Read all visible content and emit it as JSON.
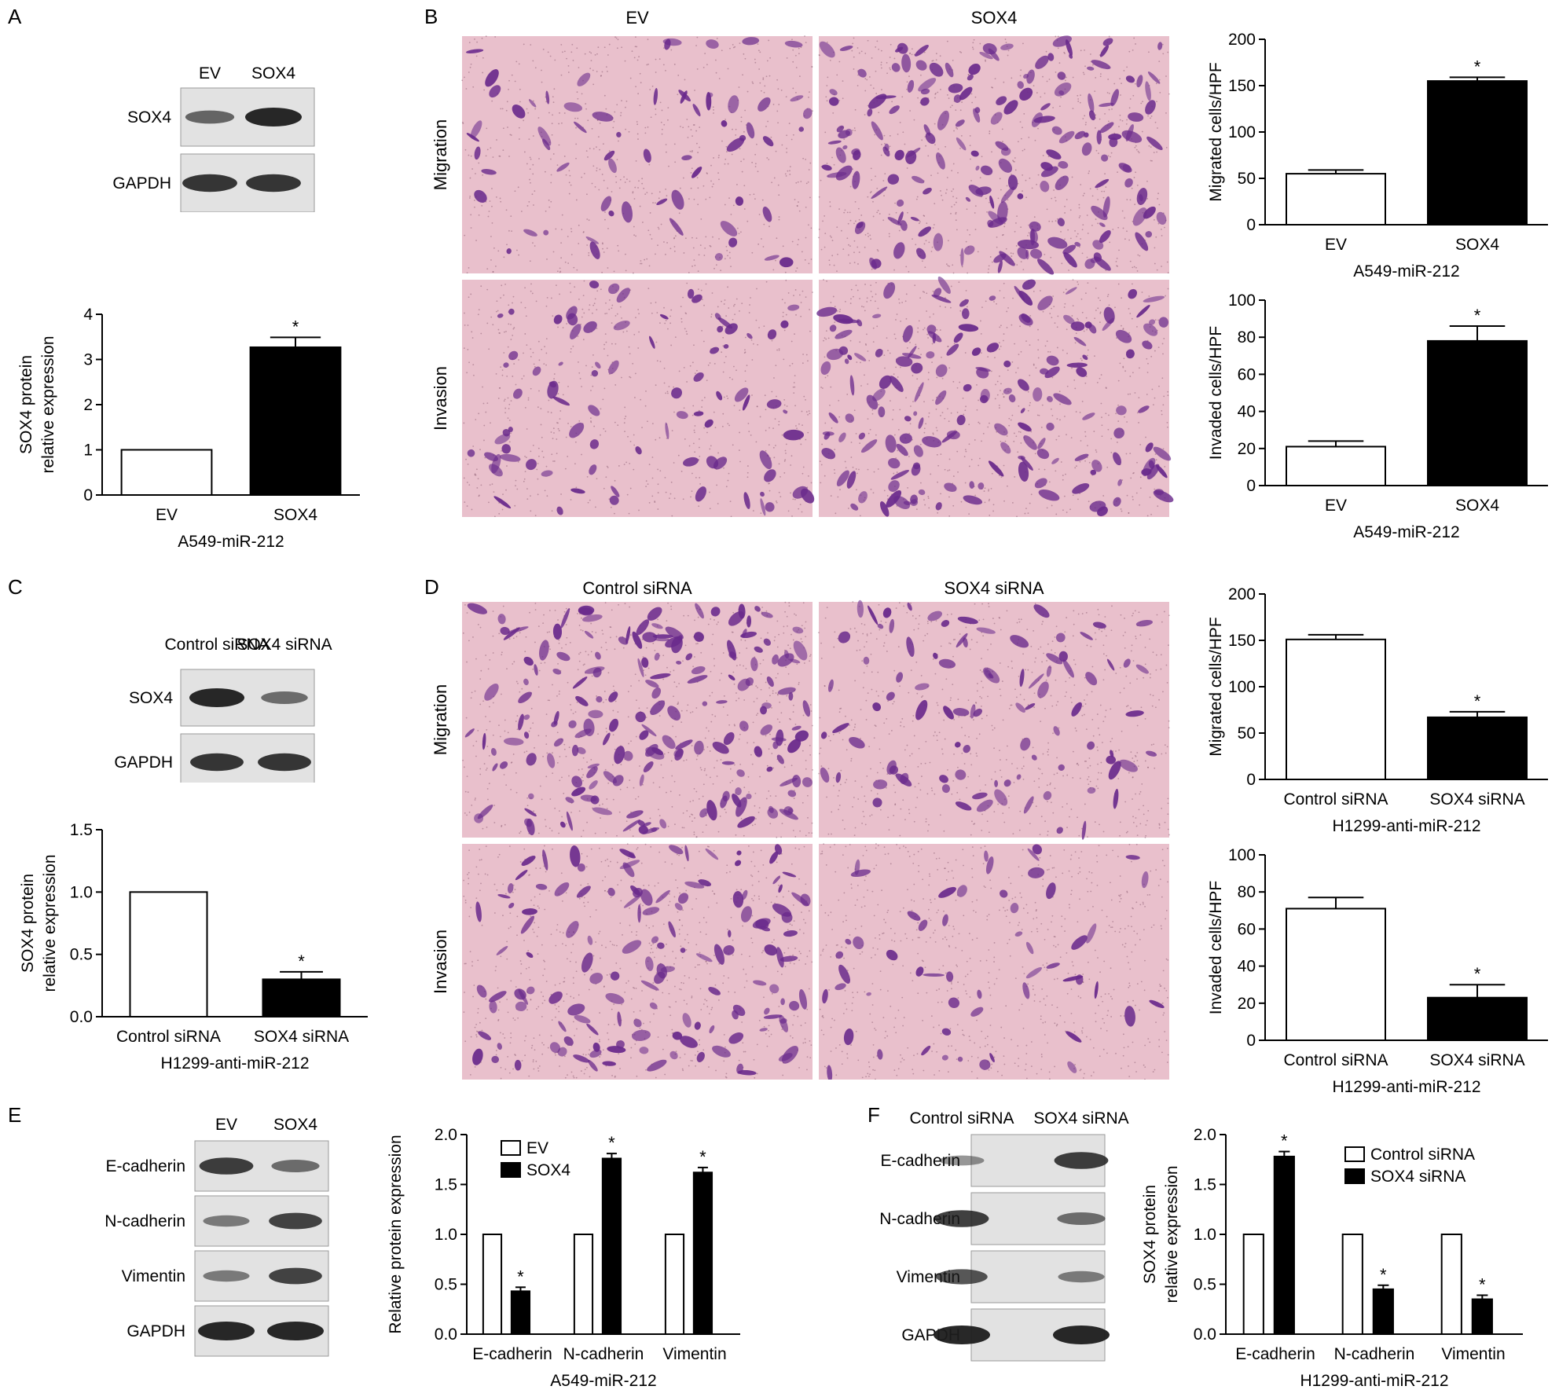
{
  "colors": {
    "ink": "#000000",
    "paper": "#ffffff",
    "blot_bg": "#e2e2e2",
    "band": "#1c1c1c",
    "stain_bg": "#e9c0cc",
    "cell": "#6a2a8c"
  },
  "panel_a": {
    "letter": "A",
    "blot": {
      "columns": [
        "EV",
        "SOX4"
      ],
      "rows": [
        "SOX4",
        "GAPDH"
      ],
      "band_intensity": [
        [
          0.55,
          1.0
        ],
        [
          0.9,
          0.9
        ]
      ]
    },
    "chart_data": {
      "type": "bar",
      "categories": [
        "EV",
        "SOX4"
      ],
      "values": [
        1.0,
        3.27
      ],
      "errors": [
        0,
        0.22
      ],
      "significance": [
        "",
        "*"
      ],
      "ylabel": "SOX4 protein\nrelative expression",
      "xlabel": "A549-miR-212",
      "ylim": [
        0,
        4
      ],
      "yticks": [
        "0",
        "1",
        "2",
        "3",
        "4"
      ]
    }
  },
  "panel_b": {
    "letter": "B",
    "columns": [
      "EV",
      "SOX4"
    ],
    "rows": [
      "Migration",
      "Invasion"
    ],
    "cell_density": [
      [
        0.35,
        1.0
      ],
      [
        0.45,
        0.9
      ]
    ],
    "chart_data": [
      {
        "type": "bar",
        "categories": [
          "EV",
          "SOX4"
        ],
        "values": [
          55,
          155
        ],
        "errors": [
          4,
          4
        ],
        "significance": [
          "",
          "*"
        ],
        "ylabel": "Migrated cells/HPF",
        "xlabel": "A549-miR-212",
        "ylim": [
          0,
          200
        ],
        "yticks": [
          "0",
          "50",
          "100",
          "150",
          "200"
        ]
      },
      {
        "type": "bar",
        "categories": [
          "EV",
          "SOX4"
        ],
        "values": [
          21,
          78
        ],
        "errors": [
          3,
          8
        ],
        "significance": [
          "",
          "*"
        ],
        "ylabel": "Invaded cells/HPF",
        "xlabel": "A549-miR-212",
        "ylim": [
          0,
          100
        ],
        "yticks": [
          "0",
          "20",
          "40",
          "60",
          "80",
          "100"
        ]
      }
    ]
  },
  "panel_c": {
    "letter": "C",
    "blot": {
      "columns": [
        "Control siRNA",
        "SOX4 siRNA"
      ],
      "rows": [
        "SOX4",
        "GAPDH"
      ],
      "band_intensity": [
        [
          1.0,
          0.5
        ],
        [
          0.9,
          0.9
        ]
      ]
    },
    "chart_data": {
      "type": "bar",
      "categories": [
        "Control siRNA",
        "SOX4 siRNA"
      ],
      "values": [
        1.0,
        0.3
      ],
      "errors": [
        0,
        0.06
      ],
      "significance": [
        "",
        "*"
      ],
      "ylabel": "SOX4 protein\nrelative expression",
      "xlabel": "H1299-anti-miR-212",
      "ylim": [
        0,
        1.5
      ],
      "yticks": [
        "0.0",
        "0.5",
        "1.0",
        "1.5"
      ]
    }
  },
  "panel_d": {
    "letter": "D",
    "columns": [
      "Control siRNA",
      "SOX4 siRNA"
    ],
    "rows": [
      "Migration",
      "Invasion"
    ],
    "cell_density": [
      [
        1.0,
        0.5
      ],
      [
        0.75,
        0.3
      ]
    ],
    "chart_data": [
      {
        "type": "bar",
        "categories": [
          "Control siRNA",
          "SOX4 siRNA"
        ],
        "values": [
          151,
          67
        ],
        "errors": [
          5,
          6
        ],
        "significance": [
          "",
          "*"
        ],
        "ylabel": "Migrated cells/HPF",
        "xlabel": "H1299-anti-miR-212",
        "ylim": [
          0,
          200
        ],
        "yticks": [
          "0",
          "50",
          "100",
          "150",
          "200"
        ]
      },
      {
        "type": "bar",
        "categories": [
          "Control siRNA",
          "SOX4 siRNA"
        ],
        "values": [
          71,
          23
        ],
        "errors": [
          6,
          7
        ],
        "significance": [
          "",
          "*"
        ],
        "ylabel": "Invaded cells/HPF",
        "xlabel": "H1299-anti-miR-212",
        "ylim": [
          0,
          100
        ],
        "yticks": [
          "0",
          "20",
          "40",
          "60",
          "80",
          "100"
        ]
      }
    ]
  },
  "panel_e": {
    "letter": "E",
    "blot": {
      "columns": [
        "EV",
        "SOX4"
      ],
      "rows": [
        "E-cadherin",
        "N-cadherin",
        "Vimentin",
        "GAPDH"
      ],
      "band_intensity": [
        [
          0.85,
          0.5
        ],
        [
          0.4,
          0.8
        ],
        [
          0.4,
          0.8
        ],
        [
          1.0,
          1.0
        ]
      ]
    },
    "chart_data": {
      "type": "bar",
      "categories": [
        "E-cadherin",
        "N-cadherin",
        "Vimentin"
      ],
      "series": [
        {
          "name": "EV",
          "values": [
            1.0,
            1.0,
            1.0
          ],
          "errors": [
            0,
            0,
            0
          ]
        },
        {
          "name": "SOX4",
          "values": [
            0.43,
            1.76,
            1.62
          ],
          "errors": [
            0.04,
            0.05,
            0.05
          ]
        }
      ],
      "significance": [
        [
          "",
          "*"
        ],
        [
          "",
          "*"
        ],
        [
          "",
          "*"
        ]
      ],
      "ylabel": "Relative protein expression",
      "xlabel": "A549-miR-212",
      "ylim": [
        0,
        2.0
      ],
      "yticks": [
        "0.0",
        "0.5",
        "1.0",
        "1.5",
        "2.0"
      ],
      "legend": "top-left"
    }
  },
  "panel_f": {
    "letter": "F",
    "blot": {
      "columns": [
        "Control siRNA",
        "SOX4 siRNA"
      ],
      "rows": [
        "E-cadherin",
        "N-cadherin",
        "Vimentin",
        "GAPDH"
      ],
      "band_intensity": [
        [
          0.3,
          0.85
        ],
        [
          0.85,
          0.5
        ],
        [
          0.7,
          0.4
        ],
        [
          1.0,
          1.0
        ]
      ]
    },
    "chart_data": {
      "type": "bar",
      "categories": [
        "E-cadherin",
        "N-cadherin",
        "Vimentin"
      ],
      "series": [
        {
          "name": "Control siRNA",
          "values": [
            1.0,
            1.0,
            1.0
          ],
          "errors": [
            0,
            0,
            0
          ]
        },
        {
          "name": "SOX4 siRNA",
          "values": [
            1.78,
            0.45,
            0.35
          ],
          "errors": [
            0.05,
            0.04,
            0.04
          ]
        }
      ],
      "significance": [
        [
          "",
          "*"
        ],
        [
          "",
          "*"
        ],
        [
          "",
          "*"
        ]
      ],
      "ylabel": "SOX4 protein\nrelative expression",
      "xlabel": "H1299-anti-miR-212",
      "ylim": [
        0,
        2.0
      ],
      "yticks": [
        "0.0",
        "0.5",
        "1.0",
        "1.5",
        "2.0"
      ],
      "legend": "top-right"
    }
  }
}
